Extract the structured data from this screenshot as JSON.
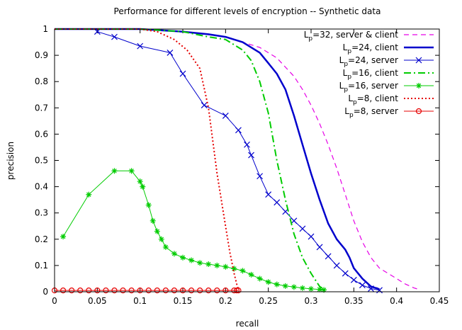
{
  "chart_data": {
    "type": "line",
    "title": "Performance for different levels of encryption -- Synthetic data",
    "xlabel": "recall",
    "ylabel": "precision",
    "xlim": [
      0,
      0.45
    ],
    "ylim": [
      0,
      1
    ],
    "xticks": [
      0,
      0.05,
      0.1,
      0.15,
      0.2,
      0.25,
      0.3,
      0.35,
      0.4,
      0.45
    ],
    "yticks": [
      0,
      0.1,
      0.2,
      0.3,
      0.4,
      0.5,
      0.6,
      0.7,
      0.8,
      0.9,
      1
    ],
    "xtick_labels": [
      "0",
      "0.05",
      "0.1",
      "0.15",
      "0.2",
      "0.25",
      "0.3",
      "0.35",
      "0.4",
      "0.45"
    ],
    "ytick_labels": [
      "0",
      "0.1",
      "0.2",
      "0.3",
      "0.4",
      "0.5",
      "0.6",
      "0.7",
      "0.8",
      "0.9",
      "1"
    ],
    "grid": false,
    "legend_position": "top-right",
    "series": [
      {
        "name": "Lp=32, server & client",
        "legend_base": "L",
        "legend_sub": "p",
        "legend_rest": "=32, server & client",
        "color": "#e600e6",
        "dash": "7,5",
        "width": 1.2,
        "marker": "none",
        "x": [
          0.0,
          0.05,
          0.1,
          0.15,
          0.2,
          0.22,
          0.24,
          0.26,
          0.28,
          0.29,
          0.3,
          0.31,
          0.32,
          0.33,
          0.34,
          0.35,
          0.36,
          0.37,
          0.38,
          0.39,
          0.4,
          0.41,
          0.42,
          0.425
        ],
        "y": [
          1.0,
          1.0,
          1.0,
          0.99,
          0.97,
          0.95,
          0.93,
          0.89,
          0.82,
          0.77,
          0.71,
          0.64,
          0.56,
          0.47,
          0.37,
          0.27,
          0.19,
          0.13,
          0.09,
          0.07,
          0.05,
          0.03,
          0.015,
          0.01
        ]
      },
      {
        "name": "Lp=24, client",
        "legend_base": "L",
        "legend_sub": "p",
        "legend_rest": "=24,  client",
        "color": "#0000cc",
        "dash": "",
        "width": 2.5,
        "marker": "none",
        "x": [
          0.0,
          0.05,
          0.1,
          0.15,
          0.18,
          0.2,
          0.22,
          0.24,
          0.25,
          0.26,
          0.27,
          0.28,
          0.29,
          0.3,
          0.31,
          0.32,
          0.33,
          0.34,
          0.345,
          0.35,
          0.36,
          0.37,
          0.38
        ],
        "y": [
          1.0,
          1.0,
          1.0,
          0.99,
          0.98,
          0.97,
          0.95,
          0.91,
          0.87,
          0.83,
          0.77,
          0.67,
          0.56,
          0.45,
          0.35,
          0.26,
          0.2,
          0.16,
          0.13,
          0.09,
          0.05,
          0.02,
          0.01
        ]
      },
      {
        "name": "Lp=24, server",
        "legend_base": "L",
        "legend_sub": "p",
        "legend_rest": "=24,   server",
        "color": "#0000cc",
        "dash": "",
        "width": 1.0,
        "marker": "x",
        "x": [
          0.05,
          0.07,
          0.1,
          0.135,
          0.15,
          0.175,
          0.2,
          0.215,
          0.225,
          0.23,
          0.24,
          0.25,
          0.26,
          0.27,
          0.28,
          0.29,
          0.3,
          0.31,
          0.32,
          0.33,
          0.34,
          0.35,
          0.36,
          0.37,
          0.38
        ],
        "y": [
          0.99,
          0.97,
          0.935,
          0.91,
          0.83,
          0.71,
          0.67,
          0.615,
          0.56,
          0.52,
          0.44,
          0.37,
          0.34,
          0.305,
          0.27,
          0.24,
          0.21,
          0.17,
          0.135,
          0.1,
          0.07,
          0.045,
          0.025,
          0.012,
          0.006
        ]
      },
      {
        "name": "Lp=16, client",
        "legend_base": "L",
        "legend_sub": "p",
        "legend_rest": "=16, client",
        "color": "#00cc00",
        "dash": "10,4,2,4",
        "width": 2.0,
        "marker": "none",
        "x": [
          0.0,
          0.05,
          0.1,
          0.15,
          0.18,
          0.2,
          0.22,
          0.23,
          0.24,
          0.25,
          0.26,
          0.27,
          0.28,
          0.29,
          0.3,
          0.31,
          0.315
        ],
        "y": [
          1.0,
          1.0,
          1.0,
          0.99,
          0.97,
          0.96,
          0.92,
          0.88,
          0.8,
          0.68,
          0.5,
          0.35,
          0.22,
          0.13,
          0.07,
          0.02,
          0.01
        ]
      },
      {
        "name": "Lp=16, server",
        "legend_base": "L",
        "legend_sub": "p",
        "legend_rest": "=16, server",
        "color": "#00cc00",
        "dash": "",
        "width": 1.0,
        "marker": "star",
        "x": [
          0.01,
          0.04,
          0.07,
          0.09,
          0.1,
          0.103,
          0.11,
          0.115,
          0.12,
          0.125,
          0.13,
          0.14,
          0.15,
          0.16,
          0.17,
          0.18,
          0.19,
          0.2,
          0.21,
          0.22,
          0.23,
          0.24,
          0.25,
          0.26,
          0.27,
          0.28,
          0.29,
          0.3,
          0.31,
          0.315
        ],
        "y": [
          0.21,
          0.37,
          0.46,
          0.46,
          0.42,
          0.4,
          0.33,
          0.27,
          0.23,
          0.2,
          0.17,
          0.145,
          0.13,
          0.12,
          0.11,
          0.105,
          0.1,
          0.095,
          0.088,
          0.08,
          0.065,
          0.05,
          0.037,
          0.028,
          0.022,
          0.018,
          0.014,
          0.011,
          0.009,
          0.007
        ]
      },
      {
        "name": "Lp=8, client",
        "legend_base": "L",
        "legend_sub": "p",
        "legend_rest": "=8, client",
        "color": "#e60000",
        "dash": "2,3",
        "width": 2.0,
        "marker": "none",
        "x": [
          0.0,
          0.05,
          0.1,
          0.12,
          0.14,
          0.155,
          0.17,
          0.18,
          0.19,
          0.2,
          0.205,
          0.21,
          0.213,
          0.215
        ],
        "y": [
          1.0,
          1.0,
          1.0,
          0.99,
          0.96,
          0.92,
          0.85,
          0.7,
          0.45,
          0.25,
          0.15,
          0.07,
          0.03,
          0.01
        ]
      },
      {
        "name": "Lp=8, server",
        "legend_base": "L",
        "legend_sub": "p",
        "legend_rest": "=8, server",
        "color": "#e60000",
        "dash": "",
        "width": 1.0,
        "marker": "circle",
        "x": [
          0.0,
          0.01,
          0.02,
          0.03,
          0.04,
          0.05,
          0.06,
          0.07,
          0.08,
          0.09,
          0.1,
          0.11,
          0.12,
          0.13,
          0.14,
          0.15,
          0.16,
          0.17,
          0.18,
          0.19,
          0.2,
          0.21,
          0.213,
          0.215
        ],
        "y": [
          0.005,
          0.005,
          0.005,
          0.005,
          0.005,
          0.005,
          0.005,
          0.005,
          0.005,
          0.005,
          0.005,
          0.005,
          0.005,
          0.005,
          0.005,
          0.005,
          0.005,
          0.005,
          0.005,
          0.005,
          0.005,
          0.005,
          0.005,
          0.005
        ]
      }
    ]
  }
}
